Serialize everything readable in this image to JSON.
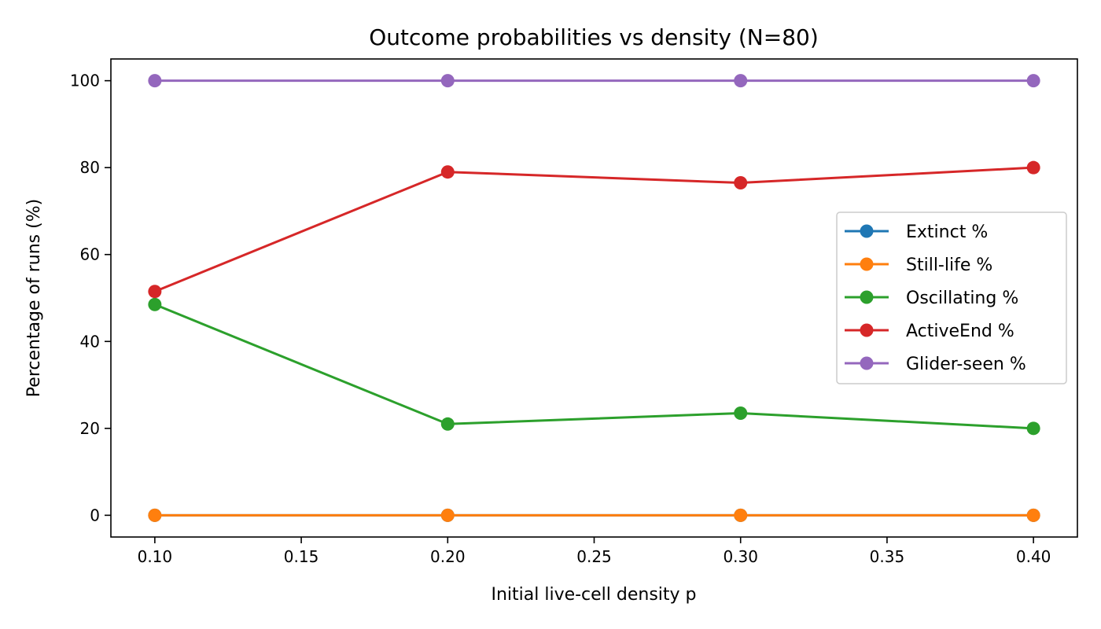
{
  "chart_data": {
    "type": "line",
    "title": "Outcome probabilities vs density (N=80)",
    "xlabel": "Initial live-cell density p",
    "ylabel": "Percentage of runs (%)",
    "x": [
      0.1,
      0.2,
      0.3,
      0.4
    ],
    "xlim": [
      0.085,
      0.415
    ],
    "ylim": [
      -5,
      105
    ],
    "xticks": [
      0.1,
      0.15,
      0.2,
      0.25,
      0.3,
      0.35,
      0.4
    ],
    "xtick_labels": [
      "0.10",
      "0.15",
      "0.20",
      "0.25",
      "0.30",
      "0.35",
      "0.40"
    ],
    "yticks": [
      0,
      20,
      40,
      60,
      80,
      100
    ],
    "ytick_labels": [
      "0",
      "20",
      "40",
      "60",
      "80",
      "100"
    ],
    "grid": false,
    "legend_position": "center-right",
    "series": [
      {
        "name": "Extinct %",
        "color": "#1f77b4",
        "values": [
          0,
          0,
          0,
          0
        ]
      },
      {
        "name": "Still-life %",
        "color": "#ff7f0e",
        "values": [
          0,
          0,
          0,
          0
        ]
      },
      {
        "name": "Oscillating %",
        "color": "#2ca02c",
        "values": [
          48.5,
          21,
          23.5,
          20
        ]
      },
      {
        "name": "ActiveEnd %",
        "color": "#d62728",
        "values": [
          51.5,
          79,
          76.5,
          80
        ]
      },
      {
        "name": "Glider-seen %",
        "color": "#9467bd",
        "values": [
          100,
          100,
          100,
          100
        ]
      }
    ]
  }
}
